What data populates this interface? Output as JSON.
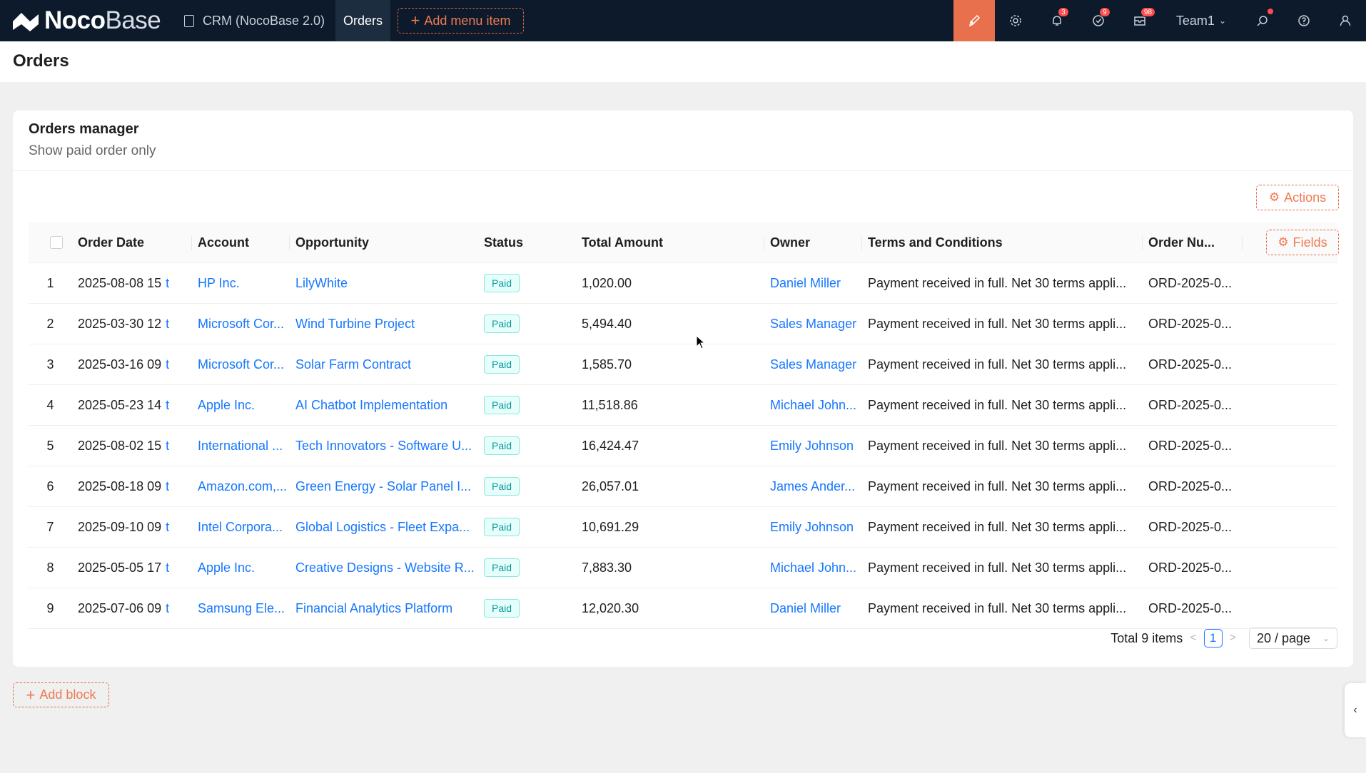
{
  "brand": {
    "name_bold": "Noco",
    "name_thin": "Base"
  },
  "topnav": {
    "crm_label": "CRM (NocoBase 2.0)",
    "active_label": "Orders",
    "add_menu_label": "Add menu item",
    "badges": {
      "notifications": "3",
      "tasks": "9",
      "mail": "98"
    },
    "team_label": "Team1"
  },
  "page": {
    "title": "Orders"
  },
  "card": {
    "title": "Orders manager",
    "description": "Show paid order only",
    "actions_label": "Actions",
    "fields_label": "Fields"
  },
  "table": {
    "columns": [
      "Order Date",
      "Account",
      "Opportunity",
      "Status",
      "Total Amount",
      "Owner",
      "Terms and Conditions",
      "Order Nu..."
    ],
    "rows": [
      {
        "idx": "1",
        "date": "2025-08-08 15",
        "account": "HP Inc.",
        "opportunity": "LilyWhite",
        "status": "Paid",
        "amount": "1,020.00",
        "owner": "Daniel Miller",
        "terms": "Payment received in full. Net 30 terms appli...",
        "order_no": "ORD-2025-0..."
      },
      {
        "idx": "2",
        "date": "2025-03-30 12",
        "account": "Microsoft Cor...",
        "opportunity": "Wind Turbine Project",
        "status": "Paid",
        "amount": "5,494.40",
        "owner": "Sales Manager",
        "terms": "Payment received in full. Net 30 terms appli...",
        "order_no": "ORD-2025-0..."
      },
      {
        "idx": "3",
        "date": "2025-03-16 09",
        "account": "Microsoft Cor...",
        "opportunity": "Solar Farm Contract",
        "status": "Paid",
        "amount": "1,585.70",
        "owner": "Sales Manager",
        "terms": "Payment received in full. Net 30 terms appli...",
        "order_no": "ORD-2025-0..."
      },
      {
        "idx": "4",
        "date": "2025-05-23 14",
        "account": "Apple Inc.",
        "opportunity": "AI Chatbot Implementation",
        "status": "Paid",
        "amount": "11,518.86",
        "owner": "Michael John...",
        "terms": "Payment received in full. Net 30 terms appli...",
        "order_no": "ORD-2025-0..."
      },
      {
        "idx": "5",
        "date": "2025-08-02 15",
        "account": "International ...",
        "opportunity": "Tech Innovators - Software U...",
        "status": "Paid",
        "amount": "16,424.47",
        "owner": "Emily Johnson",
        "terms": "Payment received in full. Net 30 terms appli...",
        "order_no": "ORD-2025-0..."
      },
      {
        "idx": "6",
        "date": "2025-08-18 09",
        "account": "Amazon.com,...",
        "opportunity": "Green Energy - Solar Panel I...",
        "status": "Paid",
        "amount": "26,057.01",
        "owner": "James Ander...",
        "terms": "Payment received in full. Net 30 terms appli...",
        "order_no": "ORD-2025-0..."
      },
      {
        "idx": "7",
        "date": "2025-09-10 09",
        "account": "Intel Corpora...",
        "opportunity": "Global Logistics - Fleet Expa...",
        "status": "Paid",
        "amount": "10,691.29",
        "owner": "Emily Johnson",
        "terms": "Payment received in full. Net 30 terms appli...",
        "order_no": "ORD-2025-0..."
      },
      {
        "idx": "8",
        "date": "2025-05-05 17",
        "account": "Apple Inc.",
        "opportunity": "Creative Designs - Website R...",
        "status": "Paid",
        "amount": "7,883.30",
        "owner": "Michael John...",
        "terms": "Payment received in full. Net 30 terms appli...",
        "order_no": "ORD-2025-0..."
      },
      {
        "idx": "9",
        "date": "2025-07-06 09",
        "account": "Samsung Ele...",
        "opportunity": "Financial Analytics Platform",
        "status": "Paid",
        "amount": "12,020.30",
        "owner": "Daniel Miller",
        "terms": "Payment received in full. Net 30 terms appli...",
        "order_no": "ORD-2025-0..."
      }
    ],
    "date_suffix": "t"
  },
  "pagination": {
    "total_label": "Total 9 items",
    "current_page": "1",
    "page_size": "20 / page"
  },
  "add_block_label": "Add block",
  "colors": {
    "nav_bg": "#0c1a2b",
    "accent": "#e8704c",
    "link": "#1677ff",
    "paid_tag": "#08979c"
  },
  "icons": [
    "logo-icon",
    "doc-icon",
    "plus-icon",
    "brush-icon",
    "gear-icon",
    "bell-icon",
    "check-circle-icon",
    "mail-icon",
    "search-icon",
    "help-icon",
    "user-icon",
    "chevron-left-icon"
  ]
}
